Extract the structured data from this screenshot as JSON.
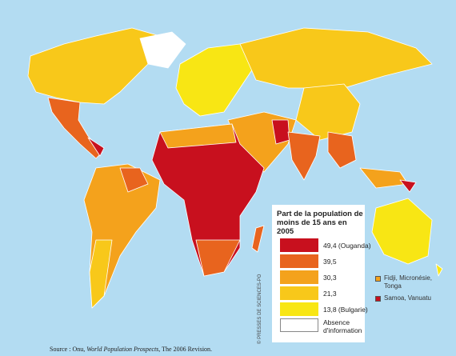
{
  "legend": {
    "title": "Part de la population de moins de 15 ans en 2005",
    "items": [
      {
        "label": "49,4 (Ouganda)",
        "color": "#c8101e"
      },
      {
        "label": "39,5",
        "color": "#e8641e"
      },
      {
        "label": "30,3",
        "color": "#f4a21c"
      },
      {
        "label": "21,3",
        "color": "#f8c81a"
      },
      {
        "label": "13,8 (Bulgarie)",
        "color": "#f8e614"
      },
      {
        "label": "Absence d'information",
        "color": "#ffffff"
      }
    ]
  },
  "islands": [
    {
      "label": "Fidji, Micronésie, Tonga",
      "color": "#f4a21c"
    },
    {
      "label": "Samoa, Vanuatu",
      "color": "#c8101e"
    }
  ],
  "source": {
    "prefix": "Source : Onu, ",
    "title": "World Population Prospects",
    "suffix": ", The 2006 Revision."
  },
  "credit": "© PRESSES DE SCIENCES-PO"
}
